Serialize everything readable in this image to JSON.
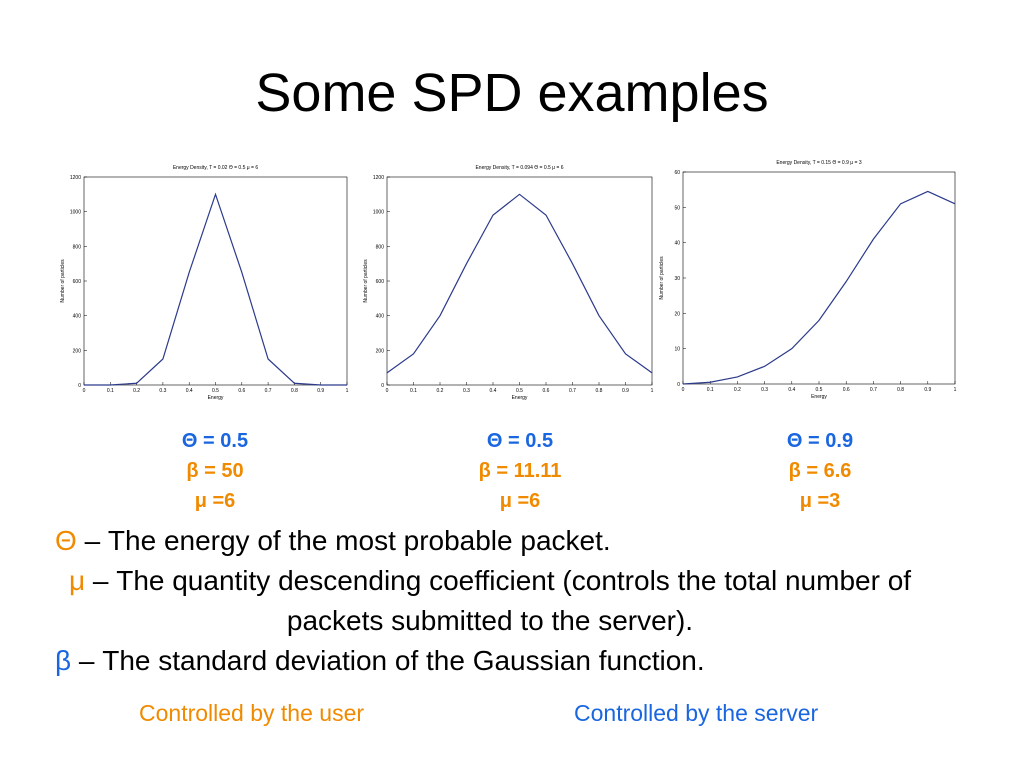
{
  "title": "Some SPD examples",
  "chart_data": [
    {
      "type": "line",
      "title": "Energy Density, T = 0.02 Θ = 0.5 μ = 6",
      "xlabel": "Energy",
      "ylabel": "Number of particles",
      "x": [
        0,
        0.1,
        0.2,
        0.3,
        0.4,
        0.5,
        0.6,
        0.7,
        0.8,
        0.9,
        1
      ],
      "values": [
        0,
        0,
        10,
        150,
        650,
        1100,
        650,
        150,
        10,
        0,
        0
      ],
      "color": "#2b3a8c",
      "xlim": [
        0,
        1
      ],
      "xticks": [
        0,
        0.1,
        0.2,
        0.3,
        0.4,
        0.5,
        0.6,
        0.7,
        0.8,
        0.9,
        1
      ],
      "ylim": [
        0,
        1200
      ],
      "yticks": [
        0,
        200,
        400,
        600,
        800,
        1000,
        1200
      ]
    },
    {
      "type": "line",
      "title": "Energy Density, T = 0.094 Θ = 0.5 μ = 6",
      "xlabel": "Energy",
      "ylabel": "Number of particles",
      "x": [
        0,
        0.1,
        0.2,
        0.3,
        0.4,
        0.5,
        0.6,
        0.7,
        0.8,
        0.9,
        1
      ],
      "values": [
        70,
        180,
        400,
        700,
        980,
        1100,
        980,
        700,
        400,
        180,
        70
      ],
      "color": "#2b3a8c",
      "xlim": [
        0,
        1
      ],
      "xticks": [
        0,
        0.1,
        0.2,
        0.3,
        0.4,
        0.5,
        0.6,
        0.7,
        0.8,
        0.9,
        1
      ],
      "ylim": [
        0,
        1200
      ],
      "yticks": [
        0,
        200,
        400,
        600,
        800,
        1000,
        1200
      ]
    },
    {
      "type": "line",
      "title": "Energy Density, T = 0.15 Θ = 0.9 μ = 3",
      "xlabel": "Energy",
      "ylabel": "Number of particles",
      "x": [
        0,
        0.1,
        0.2,
        0.3,
        0.4,
        0.5,
        0.6,
        0.7,
        0.8,
        0.9,
        1
      ],
      "values": [
        0,
        0.5,
        2,
        5,
        10,
        18,
        29,
        41,
        51,
        54.5,
        51
      ],
      "color": "#2b3a8c",
      "xlim": [
        0,
        1
      ],
      "xticks": [
        0,
        0.1,
        0.2,
        0.3,
        0.4,
        0.5,
        0.6,
        0.7,
        0.8,
        0.9,
        1
      ],
      "ylim": [
        0,
        60
      ],
      "yticks": [
        0,
        10,
        20,
        30,
        40,
        50,
        60
      ]
    }
  ],
  "params": [
    {
      "theta": "Θ = 0.5",
      "beta": "β = 50",
      "mu": "μ =6"
    },
    {
      "theta": "Θ = 0.5",
      "beta": "β = 11.11",
      "mu": "μ =6"
    },
    {
      "theta": "Θ = 0.9",
      "beta": "β = 6.6",
      "mu": "μ =3"
    }
  ],
  "bullets": [
    {
      "symbol": "Θ",
      "text": "– The energy of the most probable packet."
    },
    {
      "symbol": "μ",
      "text": "– The quantity descending coefficient (controls the total number of packets submitted to the server)."
    },
    {
      "symbol": "β",
      "text": "– The standard deviation of the Gaussian function."
    }
  ],
  "footer": {
    "user": "Controlled by the user",
    "server": "Controlled by the server"
  }
}
